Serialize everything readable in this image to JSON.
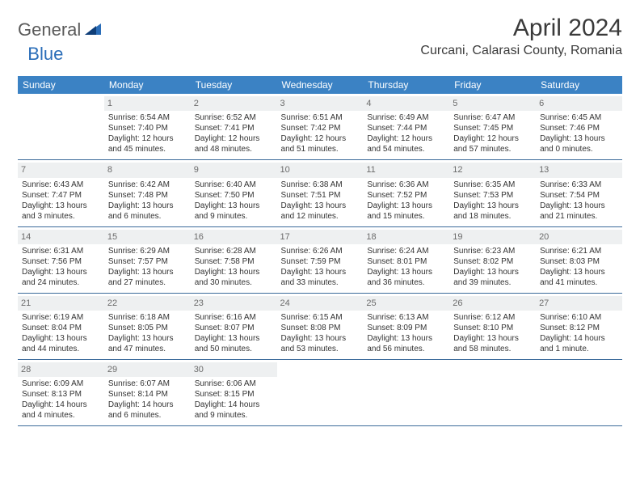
{
  "brand": {
    "part1": "General",
    "part2": "Blue"
  },
  "title": "April 2024",
  "location": "Curcani, Calarasi County, Romania",
  "colors": {
    "header_bg": "#3b82c4",
    "header_text": "#ffffff",
    "daynum_bg": "#eef0f1",
    "daynum_text": "#6b6b6b",
    "row_border": "#3b6a9a",
    "brand_gray": "#5a5a5a",
    "brand_blue": "#2a6db8"
  },
  "day_headers": [
    "Sunday",
    "Monday",
    "Tuesday",
    "Wednesday",
    "Thursday",
    "Friday",
    "Saturday"
  ],
  "weeks": [
    [
      {
        "n": "",
        "lines": []
      },
      {
        "n": "1",
        "lines": [
          "Sunrise: 6:54 AM",
          "Sunset: 7:40 PM",
          "Daylight: 12 hours and 45 minutes."
        ]
      },
      {
        "n": "2",
        "lines": [
          "Sunrise: 6:52 AM",
          "Sunset: 7:41 PM",
          "Daylight: 12 hours and 48 minutes."
        ]
      },
      {
        "n": "3",
        "lines": [
          "Sunrise: 6:51 AM",
          "Sunset: 7:42 PM",
          "Daylight: 12 hours and 51 minutes."
        ]
      },
      {
        "n": "4",
        "lines": [
          "Sunrise: 6:49 AM",
          "Sunset: 7:44 PM",
          "Daylight: 12 hours and 54 minutes."
        ]
      },
      {
        "n": "5",
        "lines": [
          "Sunrise: 6:47 AM",
          "Sunset: 7:45 PM",
          "Daylight: 12 hours and 57 minutes."
        ]
      },
      {
        "n": "6",
        "lines": [
          "Sunrise: 6:45 AM",
          "Sunset: 7:46 PM",
          "Daylight: 13 hours and 0 minutes."
        ]
      }
    ],
    [
      {
        "n": "7",
        "lines": [
          "Sunrise: 6:43 AM",
          "Sunset: 7:47 PM",
          "Daylight: 13 hours and 3 minutes."
        ]
      },
      {
        "n": "8",
        "lines": [
          "Sunrise: 6:42 AM",
          "Sunset: 7:48 PM",
          "Daylight: 13 hours and 6 minutes."
        ]
      },
      {
        "n": "9",
        "lines": [
          "Sunrise: 6:40 AM",
          "Sunset: 7:50 PM",
          "Daylight: 13 hours and 9 minutes."
        ]
      },
      {
        "n": "10",
        "lines": [
          "Sunrise: 6:38 AM",
          "Sunset: 7:51 PM",
          "Daylight: 13 hours and 12 minutes."
        ]
      },
      {
        "n": "11",
        "lines": [
          "Sunrise: 6:36 AM",
          "Sunset: 7:52 PM",
          "Daylight: 13 hours and 15 minutes."
        ]
      },
      {
        "n": "12",
        "lines": [
          "Sunrise: 6:35 AM",
          "Sunset: 7:53 PM",
          "Daylight: 13 hours and 18 minutes."
        ]
      },
      {
        "n": "13",
        "lines": [
          "Sunrise: 6:33 AM",
          "Sunset: 7:54 PM",
          "Daylight: 13 hours and 21 minutes."
        ]
      }
    ],
    [
      {
        "n": "14",
        "lines": [
          "Sunrise: 6:31 AM",
          "Sunset: 7:56 PM",
          "Daylight: 13 hours and 24 minutes."
        ]
      },
      {
        "n": "15",
        "lines": [
          "Sunrise: 6:29 AM",
          "Sunset: 7:57 PM",
          "Daylight: 13 hours and 27 minutes."
        ]
      },
      {
        "n": "16",
        "lines": [
          "Sunrise: 6:28 AM",
          "Sunset: 7:58 PM",
          "Daylight: 13 hours and 30 minutes."
        ]
      },
      {
        "n": "17",
        "lines": [
          "Sunrise: 6:26 AM",
          "Sunset: 7:59 PM",
          "Daylight: 13 hours and 33 minutes."
        ]
      },
      {
        "n": "18",
        "lines": [
          "Sunrise: 6:24 AM",
          "Sunset: 8:01 PM",
          "Daylight: 13 hours and 36 minutes."
        ]
      },
      {
        "n": "19",
        "lines": [
          "Sunrise: 6:23 AM",
          "Sunset: 8:02 PM",
          "Daylight: 13 hours and 39 minutes."
        ]
      },
      {
        "n": "20",
        "lines": [
          "Sunrise: 6:21 AM",
          "Sunset: 8:03 PM",
          "Daylight: 13 hours and 41 minutes."
        ]
      }
    ],
    [
      {
        "n": "21",
        "lines": [
          "Sunrise: 6:19 AM",
          "Sunset: 8:04 PM",
          "Daylight: 13 hours and 44 minutes."
        ]
      },
      {
        "n": "22",
        "lines": [
          "Sunrise: 6:18 AM",
          "Sunset: 8:05 PM",
          "Daylight: 13 hours and 47 minutes."
        ]
      },
      {
        "n": "23",
        "lines": [
          "Sunrise: 6:16 AM",
          "Sunset: 8:07 PM",
          "Daylight: 13 hours and 50 minutes."
        ]
      },
      {
        "n": "24",
        "lines": [
          "Sunrise: 6:15 AM",
          "Sunset: 8:08 PM",
          "Daylight: 13 hours and 53 minutes."
        ]
      },
      {
        "n": "25",
        "lines": [
          "Sunrise: 6:13 AM",
          "Sunset: 8:09 PM",
          "Daylight: 13 hours and 56 minutes."
        ]
      },
      {
        "n": "26",
        "lines": [
          "Sunrise: 6:12 AM",
          "Sunset: 8:10 PM",
          "Daylight: 13 hours and 58 minutes."
        ]
      },
      {
        "n": "27",
        "lines": [
          "Sunrise: 6:10 AM",
          "Sunset: 8:12 PM",
          "Daylight: 14 hours and 1 minute."
        ]
      }
    ],
    [
      {
        "n": "28",
        "lines": [
          "Sunrise: 6:09 AM",
          "Sunset: 8:13 PM",
          "Daylight: 14 hours and 4 minutes."
        ]
      },
      {
        "n": "29",
        "lines": [
          "Sunrise: 6:07 AM",
          "Sunset: 8:14 PM",
          "Daylight: 14 hours and 6 minutes."
        ]
      },
      {
        "n": "30",
        "lines": [
          "Sunrise: 6:06 AM",
          "Sunset: 8:15 PM",
          "Daylight: 14 hours and 9 minutes."
        ]
      },
      {
        "n": "",
        "lines": []
      },
      {
        "n": "",
        "lines": []
      },
      {
        "n": "",
        "lines": []
      },
      {
        "n": "",
        "lines": []
      }
    ]
  ]
}
